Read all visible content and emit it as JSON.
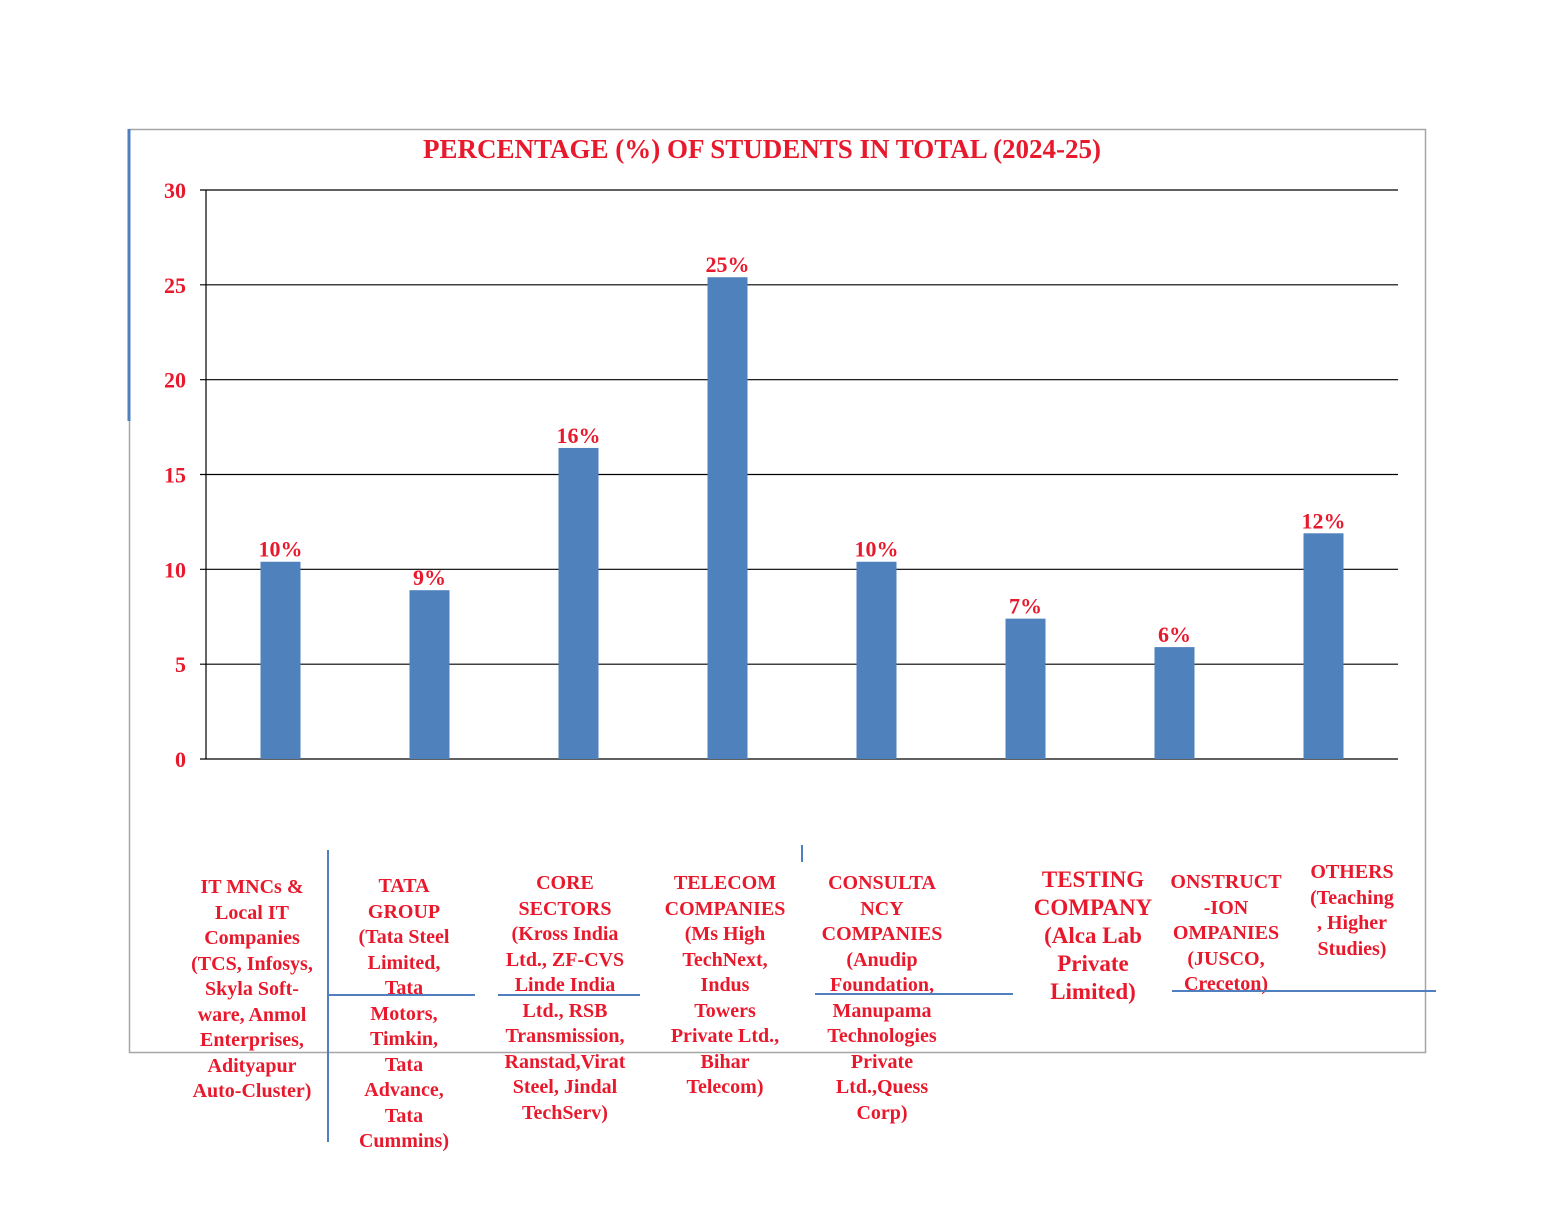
{
  "chart_data": {
    "type": "bar",
    "title": "PERCENTAGE (%)  OF  STUDENTS  IN  TOTAL (2024-25)",
    "xlabel": "",
    "ylabel": "",
    "ylim": [
      0,
      30
    ],
    "yticks": [
      0,
      5,
      10,
      15,
      20,
      25,
      30
    ],
    "grid": true,
    "bar_color": "#4f81bd",
    "text_color": "#e8192c",
    "categories": [
      "IT MNCs &\n  Local IT\nCompanies\n(TCS, Infosys,\nSkyla Soft-\nware, Anmol\nEnterprises,\nAdityapur\nAuto-Cluster)",
      "TATA\nGROUP\n(Tata Steel\nLimited,\nTata\n Motors,\nTimkin,\n Tata\nAdvance,\nTata\nCummins)",
      "CORE\nSECTORS\n(Kross India\nLtd., ZF-CVS\nLinde India\nLtd., RSB\nTransmission,\nRanstad,Virat\nSteel, Jindal\nTechServ)",
      "TELECOM\nCOMPANIES\n(Ms High\nTechNext,\nIndus\n  Towers\nPrivate Ltd.,\n Bihar\nTelecom)",
      "CONSULTA\nNCY\nCOMPANIES\n(Anudip\nFoundation,\nManupama\nTechnologies\nPrivate\nLtd.,Quess\nCorp)",
      "TESTING\nCOMPANY\n(Alca Lab\nPrivate\nLimited)",
      "ONSTRUCT\n-ION\nOMPANIES\n(JUSCO,\nCreceton)",
      "OTHERS\n(Teaching\n, Higher\nStudies)"
    ],
    "values": [
      10.4,
      8.9,
      16.4,
      25.4,
      10.4,
      7.4,
      5.9,
      11.9
    ],
    "data_labels": [
      "10%",
      "9%",
      "16%",
      "25%",
      "10%",
      "7%",
      "6%",
      "12%"
    ]
  }
}
